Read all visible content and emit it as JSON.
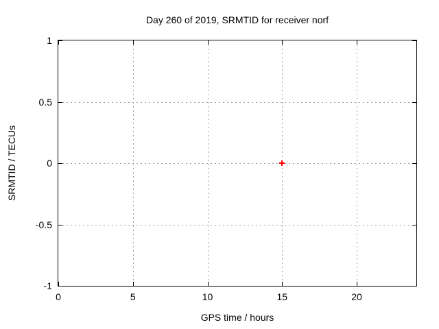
{
  "chart_data": {
    "type": "scatter",
    "title": "Day 260 of 2019, SRMTID for receiver norf",
    "xlabel": "GPS time / hours",
    "ylabel": "SRMTID / TECUs",
    "xlim": [
      0,
      24
    ],
    "ylim": [
      -1,
      1
    ],
    "xticks": [
      0,
      5,
      10,
      15,
      20
    ],
    "xtick_labels": [
      "0",
      "5",
      "10",
      "15",
      "20"
    ],
    "yticks": [
      -1,
      -0.5,
      0,
      0.5,
      1
    ],
    "ytick_labels": [
      "-1",
      "-0.5",
      "0",
      "0.5",
      "1"
    ],
    "grid": true,
    "grid_style": "dotted",
    "legend": false,
    "tick_style": "inward-mirrored",
    "series": [
      {
        "marker": "plus",
        "color": "#ff0000",
        "points": [
          {
            "x": 15,
            "y": 0
          }
        ]
      }
    ],
    "colors": {
      "background": "#ffffff",
      "axis_border": "#000000",
      "grid": "#a0a0a0",
      "text": "#000000"
    }
  }
}
